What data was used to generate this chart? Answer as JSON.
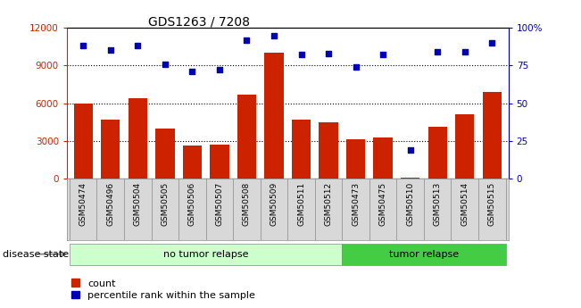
{
  "title": "GDS1263 / 7208",
  "samples": [
    "GSM50474",
    "GSM50496",
    "GSM50504",
    "GSM50505",
    "GSM50506",
    "GSM50507",
    "GSM50508",
    "GSM50509",
    "GSM50511",
    "GSM50512",
    "GSM50473",
    "GSM50475",
    "GSM50510",
    "GSM50513",
    "GSM50514",
    "GSM50515"
  ],
  "counts": [
    6000,
    4700,
    6400,
    4000,
    2600,
    2700,
    6700,
    10000,
    4700,
    4500,
    3100,
    3300,
    100,
    4100,
    5100,
    6900
  ],
  "percentiles": [
    88,
    85,
    88,
    76,
    71,
    72,
    92,
    95,
    82,
    83,
    74,
    82,
    19,
    84,
    84,
    90
  ],
  "no_tumor_count": 10,
  "tumor_count": 6,
  "ylim_left": [
    0,
    12000
  ],
  "ylim_right": [
    0,
    100
  ],
  "yticks_left": [
    0,
    3000,
    6000,
    9000,
    12000
  ],
  "yticks_right": [
    0,
    25,
    50,
    75,
    100
  ],
  "bar_color": "#cc2200",
  "dot_color": "#0000bb",
  "no_tumor_color": "#ccffcc",
  "tumor_color": "#44cc44",
  "bg_color": "#d8d8d8",
  "label_count": "count",
  "label_percentile": "percentile rank within the sample",
  "disease_label": "disease state",
  "no_tumor_label": "no tumor relapse",
  "tumor_label": "tumor relapse",
  "grid_yticks": [
    3000,
    6000,
    9000
  ]
}
